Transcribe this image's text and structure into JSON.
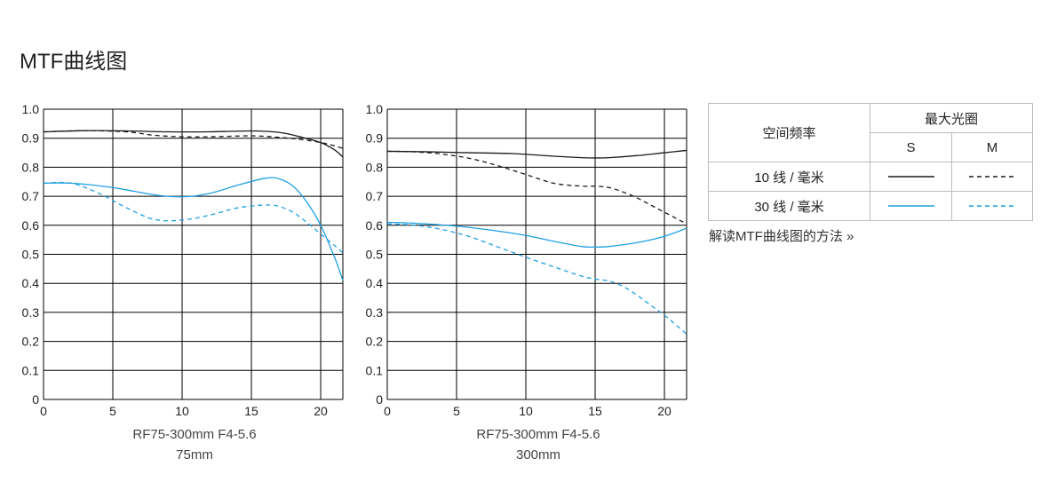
{
  "page": {
    "title": "MTF曲线图"
  },
  "colors": {
    "line_10": "#1a1a1a",
    "line_30": "#1ea0e0",
    "grid": "#000000"
  },
  "chart_data": [
    {
      "type": "line",
      "caption_line1": "RF75-300mm F4-5.6",
      "caption_line2": "75mm",
      "xlim": [
        0,
        21.6
      ],
      "ylim": [
        0,
        1.0
      ],
      "xticks": [
        0,
        5,
        10,
        15,
        20
      ],
      "yticks": [
        0,
        0.1,
        0.2,
        0.3,
        0.4,
        0.5,
        0.6,
        0.7,
        0.8,
        0.9,
        1.0
      ],
      "ytick_labels": [
        "0",
        "0.1",
        "0.2",
        "0.3",
        "0.4",
        "0.5",
        "0.6",
        "0.7",
        "0.8",
        "0.9",
        "1.0"
      ],
      "xtick_labels": [
        "0",
        "5",
        "10",
        "15",
        "20"
      ],
      "grid": true,
      "series": [
        {
          "freq": "10",
          "type": "S",
          "x": [
            0,
            3,
            6,
            9,
            12,
            15,
            17,
            18.5,
            20,
            21,
            21.6
          ],
          "y": [
            0.922,
            0.926,
            0.925,
            0.922,
            0.922,
            0.925,
            0.92,
            0.905,
            0.885,
            0.86,
            0.835
          ]
        },
        {
          "freq": "10",
          "type": "M",
          "x": [
            0,
            3,
            6,
            8,
            10,
            12,
            15,
            17,
            19,
            20.5,
            21.6
          ],
          "y": [
            0.922,
            0.926,
            0.922,
            0.91,
            0.905,
            0.905,
            0.908,
            0.903,
            0.893,
            0.88,
            0.865
          ]
        },
        {
          "freq": "30",
          "type": "S",
          "x": [
            0,
            2,
            5,
            8,
            10,
            12,
            14,
            16,
            17,
            18,
            19,
            20,
            21,
            21.6
          ],
          "y": [
            0.745,
            0.745,
            0.73,
            0.705,
            0.698,
            0.71,
            0.738,
            0.762,
            0.76,
            0.735,
            0.68,
            0.6,
            0.49,
            0.41
          ]
        },
        {
          "freq": "30",
          "type": "M",
          "x": [
            0,
            2,
            4,
            6,
            8,
            10,
            12,
            14,
            16,
            17,
            18,
            19,
            20,
            21,
            21.6
          ],
          "y": [
            0.745,
            0.745,
            0.71,
            0.66,
            0.62,
            0.618,
            0.635,
            0.66,
            0.67,
            0.665,
            0.645,
            0.61,
            0.57,
            0.53,
            0.505
          ]
        }
      ]
    },
    {
      "type": "line",
      "caption_line1": "RF75-300mm F4-5.6",
      "caption_line2": "300mm",
      "xlim": [
        0,
        21.6
      ],
      "ylim": [
        0,
        1.0
      ],
      "xticks": [
        0,
        5,
        10,
        15,
        20
      ],
      "yticks": [
        0,
        0.1,
        0.2,
        0.3,
        0.4,
        0.5,
        0.6,
        0.7,
        0.8,
        0.9,
        1.0
      ],
      "ytick_labels": [
        "0",
        "0.1",
        "0.2",
        "0.3",
        "0.4",
        "0.5",
        "0.6",
        "0.7",
        "0.8",
        "0.9",
        "1.0"
      ],
      "xtick_labels": [
        "0",
        "5",
        "10",
        "15",
        "20"
      ],
      "grid": true,
      "series": [
        {
          "freq": "10",
          "type": "S",
          "x": [
            0,
            3,
            6,
            9,
            12,
            14,
            15,
            16,
            18,
            20,
            21.6
          ],
          "y": [
            0.855,
            0.853,
            0.85,
            0.847,
            0.838,
            0.833,
            0.832,
            0.833,
            0.84,
            0.85,
            0.858
          ]
        },
        {
          "freq": "10",
          "type": "M",
          "x": [
            0,
            2,
            4,
            6,
            8,
            10,
            12,
            14,
            15,
            16,
            17,
            18,
            19,
            20,
            21,
            21.6
          ],
          "y": [
            0.855,
            0.853,
            0.845,
            0.83,
            0.805,
            0.775,
            0.745,
            0.735,
            0.735,
            0.73,
            0.715,
            0.695,
            0.67,
            0.645,
            0.62,
            0.605
          ]
        },
        {
          "freq": "30",
          "type": "S",
          "x": [
            0,
            2,
            5,
            8,
            10,
            12,
            14,
            15,
            16,
            18,
            20,
            21.6
          ],
          "y": [
            0.61,
            0.607,
            0.597,
            0.58,
            0.565,
            0.545,
            0.527,
            0.525,
            0.527,
            0.54,
            0.562,
            0.59
          ]
        },
        {
          "freq": "30",
          "type": "M",
          "x": [
            0,
            2,
            4,
            6,
            8,
            10,
            12,
            14,
            15,
            16,
            17,
            18,
            19,
            20,
            21,
            21.6
          ],
          "y": [
            0.605,
            0.6,
            0.585,
            0.56,
            0.525,
            0.49,
            0.457,
            0.425,
            0.415,
            0.408,
            0.39,
            0.36,
            0.325,
            0.29,
            0.25,
            0.225
          ]
        }
      ]
    }
  ],
  "legend": {
    "spatial_freq_header": "空间频率",
    "max_aperture_header": "最大光圈",
    "s_header": "S",
    "m_header": "M",
    "row_10_label": "10 线 / 毫米",
    "row_30_label": "30 线 / 毫米"
  },
  "link": {
    "text": "解读MTF曲线图的方法 »"
  }
}
